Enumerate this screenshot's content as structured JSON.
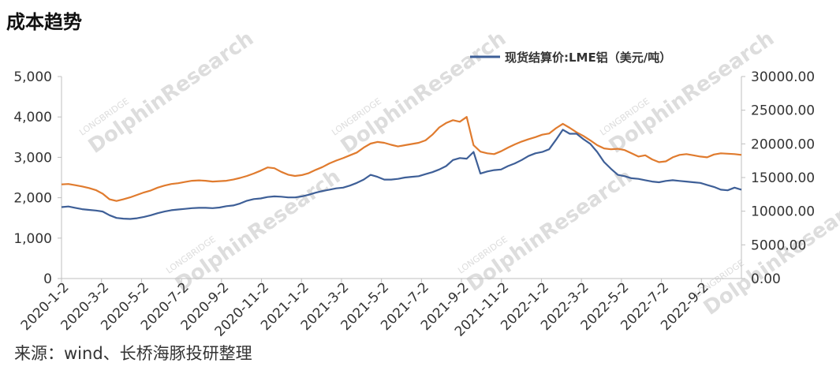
{
  "title": "成本趋势",
  "source": "来源：wind、长桥海豚投研整理",
  "watermark": {
    "brand": "LONGBRIDGE",
    "name": "DolphinResearch"
  },
  "colors": {
    "orange": "#E07B2E",
    "blue": "#3E5F97",
    "axis": "#bfbfbf"
  },
  "chart_data": {
    "type": "line",
    "legend": {
      "label": "现货结算价:LME铝（美元/吨）",
      "position": "top-right"
    },
    "grid": false,
    "y_left": {
      "range": [
        0,
        5000
      ],
      "ticks": [
        "0",
        "1,000",
        "2,000",
        "3,000",
        "4,000",
        "5,000"
      ]
    },
    "y_right": {
      "range": [
        0,
        30000
      ],
      "ticks": [
        "0.00",
        "5000.00",
        "10000.00",
        "15000.00",
        "20000.00",
        "25000.00",
        "30000.00"
      ]
    },
    "x_ticks": [
      "2020-1-2",
      "2020-3-2",
      "2020-5-2",
      "2020-7-2",
      "2020-9-2",
      "2020-11-2",
      "2021-1-2",
      "2021-3-2",
      "2021-5-2",
      "2021-7-2",
      "2021-9-2",
      "2021-11-2",
      "2022-1-2",
      "2022-3-2",
      "2022-5-2",
      "2022-7-2",
      "2022-9-2"
    ],
    "series": [
      {
        "axis": "left",
        "values": [
          2330,
          2340,
          2310,
          2280,
          2240,
          2190,
          2100,
          1960,
          1920,
          1960,
          2010,
          2070,
          2130,
          2180,
          2250,
          2300,
          2340,
          2360,
          2390,
          2420,
          2430,
          2420,
          2400,
          2410,
          2420,
          2450,
          2490,
          2540,
          2600,
          2670,
          2750,
          2730,
          2640,
          2570,
          2540,
          2560,
          2610,
          2690,
          2760,
          2850,
          2920,
          2980,
          3050,
          3120,
          3240,
          3340,
          3380,
          3360,
          3310,
          3270,
          3300,
          3330,
          3360,
          3420,
          3560,
          3740,
          3850,
          3920,
          3880,
          4000,
          3300,
          3140,
          3100,
          3080,
          3150,
          3240,
          3320,
          3390,
          3450,
          3500,
          3560,
          3590,
          3720,
          3830,
          3730,
          3620,
          3530,
          3420,
          3300,
          3220,
          3200,
          3210,
          3180,
          3100,
          3020,
          3050,
          2950,
          2880,
          2900,
          3000,
          3060,
          3080,
          3050,
          3020,
          3000,
          3070,
          3100,
          3090,
          3080,
          3060
        ]
      },
      {
        "axis": "right",
        "values": [
          10600,
          10700,
          10500,
          10300,
          10200,
          10100,
          9950,
          9400,
          9000,
          8900,
          8850,
          8950,
          9150,
          9400,
          9700,
          9950,
          10150,
          10250,
          10350,
          10450,
          10500,
          10500,
          10450,
          10550,
          10750,
          10850,
          11150,
          11550,
          11800,
          11900,
          12100,
          12200,
          12150,
          12050,
          12050,
          12200,
          12450,
          12750,
          13000,
          13200,
          13400,
          13500,
          13800,
          14200,
          14700,
          15400,
          15100,
          14700,
          14700,
          14800,
          15000,
          15100,
          15200,
          15500,
          15800,
          16200,
          16700,
          17600,
          17900,
          17800,
          18800,
          15600,
          15900,
          16100,
          16200,
          16700,
          17100,
          17600,
          18200,
          18600,
          18800,
          19200,
          20600,
          22100,
          21500,
          21500,
          20700,
          20000,
          18800,
          17300,
          16300,
          15400,
          15200,
          14900,
          14800,
          14600,
          14400,
          14300,
          14500,
          14600,
          14500,
          14400,
          14300,
          14200,
          13900,
          13600,
          13200,
          13100,
          13500,
          13200
        ]
      }
    ]
  }
}
